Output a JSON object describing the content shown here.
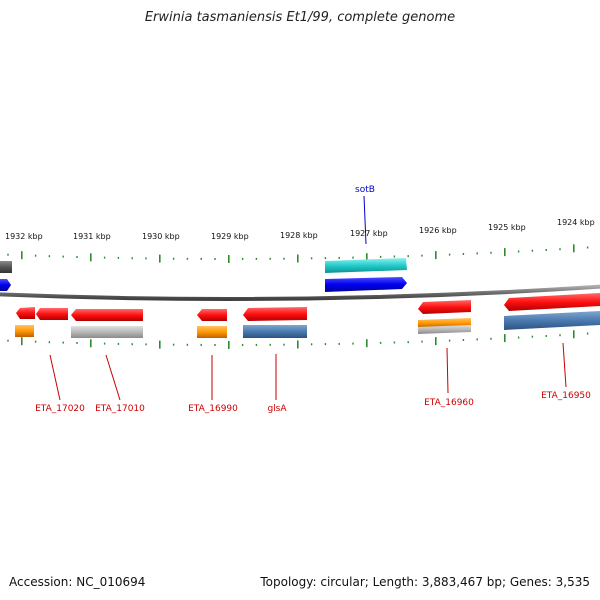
{
  "title": "Erwinia tasmaniensis Et1/99, complete genome",
  "footer": {
    "accession": "Accession: NC_010694",
    "stats": "Topology: circular; Length: 3,883,467 bp; Genes: 3,535"
  },
  "scale_labels": [
    "1932 kbp",
    "1931 kbp",
    "1930 kbp",
    "1929 kbp",
    "1928 kbp",
    "1927 kbp",
    "1926 kbp",
    "1925 kbp",
    "1924 kbp"
  ],
  "colors": {
    "backbone": "#808080",
    "tick": "#2e8b2e",
    "label_red": "#cc0000",
    "label_blue": "#0000cc",
    "gene_red": "#ff1a1a",
    "gene_orange": "#ff9900",
    "gene_gray": "#b8b8b8",
    "gene_steel": "#4a7ab0",
    "gene_cyan": "#22cccc",
    "gene_blue": "#0000ee",
    "gene_dark": "#555555"
  },
  "gene_labels": [
    {
      "name": "sotB",
      "color": "blue"
    },
    {
      "name": "ETA_17020",
      "color": "red"
    },
    {
      "name": "ETA_17010",
      "color": "red"
    },
    {
      "name": "ETA_16990",
      "color": "red"
    },
    {
      "name": "glsA",
      "color": "red"
    },
    {
      "name": "ETA_16960",
      "color": "red"
    },
    {
      "name": "ETA_16950",
      "color": "red"
    }
  ]
}
